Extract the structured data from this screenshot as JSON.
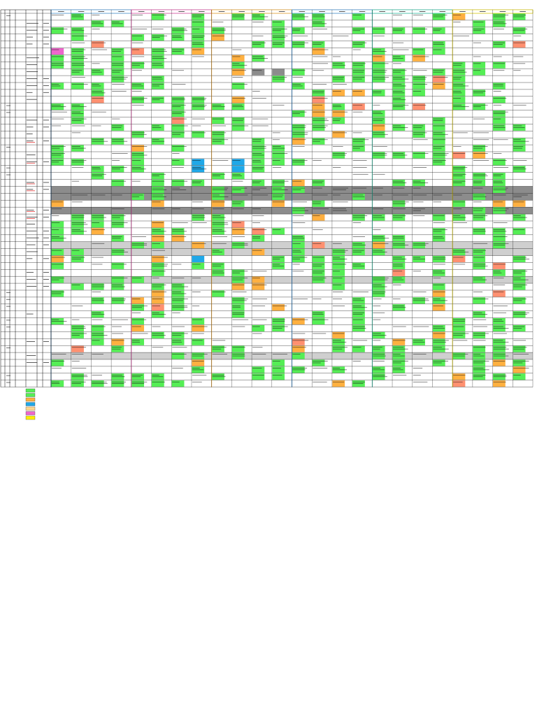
{
  "sheet": {
    "title": "",
    "header_lines": [
      "",
      "",
      "",
      ""
    ],
    "columns": {
      "week_groups": [
        {
          "color": "#3a8fd6"
        },
        {
          "color": "#e040a0"
        },
        {
          "color": "#f0a020"
        },
        {
          "color": "#3a8fd6"
        },
        {
          "color": "#20c0a0"
        },
        {
          "color": "#e6d400"
        }
      ],
      "group_columns": 4
    },
    "rows": 54,
    "legend": {
      "entries": [
        {
          "color": "#55ee55",
          "label": ""
        },
        {
          "color": "#55ee55",
          "label": ""
        },
        {
          "color": "#ffb040",
          "label": ""
        },
        {
          "color": "#20a8e8",
          "label": ""
        },
        {
          "color": "#ffd890",
          "label": ""
        },
        {
          "color": "#ee66cc",
          "label": ""
        },
        {
          "color": "#ffee00",
          "label": ""
        }
      ]
    },
    "colors": {
      "green": "#55ee55",
      "orange": "#ffb040",
      "blue": "#20a8e8",
      "gray": "#8c8c8c",
      "lightgray": "#cfcfcf",
      "pink": "#ee66cc",
      "salmon": "#ff9070",
      "yellow": "#ffee00"
    }
  }
}
